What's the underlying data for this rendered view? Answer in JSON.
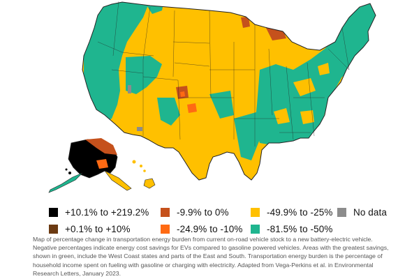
{
  "colors": {
    "cat1": "#000000",
    "cat2": "#6b3a12",
    "cat3": "#c5511c",
    "cat4": "#ff6a13",
    "cat5": "#ffc000",
    "cat6": "#1fb58f",
    "nodata": "#8c8c8c",
    "state_border": "#222222"
  },
  "legend": [
    {
      "label": "+10.1% to +219.2%",
      "color_key": "cat1",
      "icon": "black-square"
    },
    {
      "label": "+0.1% to +10%",
      "color_key": "cat2",
      "icon": "brown-square"
    },
    {
      "label": "-9.9% to 0%",
      "color_key": "cat3",
      "icon": "rust-square"
    },
    {
      "label": "-24.9% to -10%",
      "color_key": "cat4",
      "icon": "orange-square"
    },
    {
      "label": "-49.9% to -25%",
      "color_key": "cat5",
      "icon": "yellow-square"
    },
    {
      "label": "-81.5% to -50%",
      "color_key": "cat6",
      "icon": "green-square"
    },
    {
      "label": "No data",
      "color_key": "nodata",
      "icon": "gray-square"
    }
  ],
  "caption": "Map of percentage change in transportation energy burden from current on-road vehicle stock to a new battery-electric vehicle. Negative percentages indicate energy cost savings for EVs compared to gasoline powered vehicles. Areas with the greatest savings, shown in green, include the West Coast states and parts of the East and South. Transportation energy burden is the percentage of household income spent on fueling with gasoline or charging with electricity. Adapted from Vega-Perkins et al. in Environmental Research Letters, January 2023."
}
